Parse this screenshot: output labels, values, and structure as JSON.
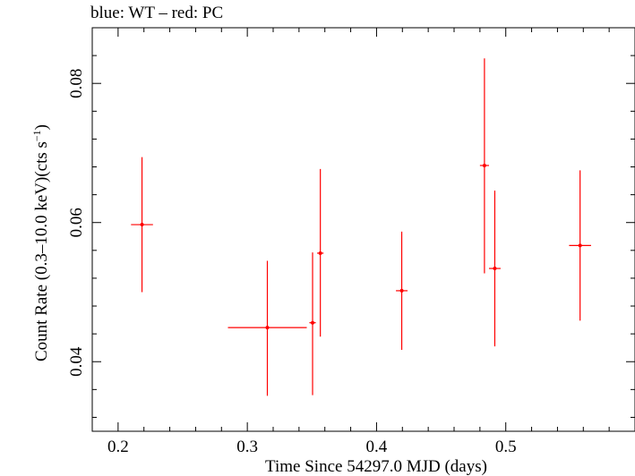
{
  "chart_data": {
    "type": "scatter",
    "title": "blue: WT – red: PC",
    "xlabel": "Time Since 54297.0 MJD (days)",
    "ylabel_main": "Count Rate (0.3–10.0 keV)(cts s",
    "ylabel_sup": "−1",
    "ylabel_end": ")",
    "xlim": [
      0.18,
      0.6
    ],
    "ylim": [
      0.03,
      0.088
    ],
    "xticks": [
      0.2,
      0.3,
      0.4,
      0.5
    ],
    "xtick_labels": [
      "0.2",
      "0.3",
      "0.4",
      "0.5"
    ],
    "yticks": [
      0.04,
      0.06,
      0.08
    ],
    "ytick_labels": [
      "0.04",
      "0.06",
      "0.08"
    ],
    "series": [
      {
        "color": "#ff0000",
        "points": [
          {
            "x": 0.2185,
            "y": 0.0597,
            "xerr": 0.0085,
            "yerr_low": 0.0097,
            "yerr_high": 0.0097
          },
          {
            "x": 0.3155,
            "y": 0.0449,
            "xerr": 0.0305,
            "yerr_low": 0.0098,
            "yerr_high": 0.0096
          },
          {
            "x": 0.3505,
            "y": 0.0456,
            "xerr": 0.0025,
            "yerr_low": 0.0104,
            "yerr_high": 0.0101
          },
          {
            "x": 0.3565,
            "y": 0.0556,
            "xerr": 0.0025,
            "yerr_low": 0.012,
            "yerr_high": 0.0121
          },
          {
            "x": 0.4195,
            "y": 0.0502,
            "xerr": 0.0045,
            "yerr_low": 0.0085,
            "yerr_high": 0.0085
          },
          {
            "x": 0.4835,
            "y": 0.0682,
            "xerr": 0.0035,
            "yerr_low": 0.0155,
            "yerr_high": 0.0154
          },
          {
            "x": 0.4915,
            "y": 0.0534,
            "xerr": 0.0045,
            "yerr_low": 0.0112,
            "yerr_high": 0.0112
          },
          {
            "x": 0.5575,
            "y": 0.0567,
            "xerr": 0.0085,
            "yerr_low": 0.0108,
            "yerr_high": 0.0108
          }
        ]
      }
    ],
    "grid": false
  }
}
